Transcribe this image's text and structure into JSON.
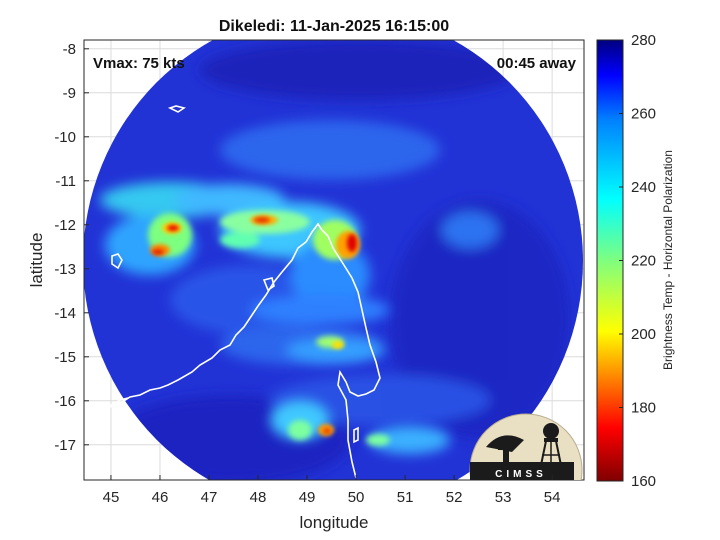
{
  "title": "Dikeledi: 11-Jan-2025 16:15:00",
  "overlay": {
    "vmax": "Vmax: 75 kts",
    "away": "00:45 away"
  },
  "axes": {
    "xlabel": "longitude",
    "ylabel": "latitude",
    "xticks": [
      "45",
      "46",
      "47",
      "48",
      "49",
      "50",
      "51",
      "52",
      "53",
      "54"
    ],
    "yticks": [
      "-8",
      "-9",
      "-10",
      "-11",
      "-12",
      "-13",
      "-14",
      "-15",
      "-16",
      "-17"
    ],
    "xlim": [
      44.45,
      54.65
    ],
    "ylim": [
      -17.8,
      -7.8
    ],
    "grid": true
  },
  "colorbar": {
    "label": "Brightness Temp - Horizontal Polarization",
    "ticks": [
      "280",
      "260",
      "240",
      "220",
      "200",
      "180",
      "160"
    ],
    "range": [
      160,
      280
    ],
    "colormap": "jet"
  },
  "logo": {
    "text": "CIMSS"
  },
  "colors": {
    "background_field": "#2030d8",
    "coastline": "#ffffff"
  }
}
